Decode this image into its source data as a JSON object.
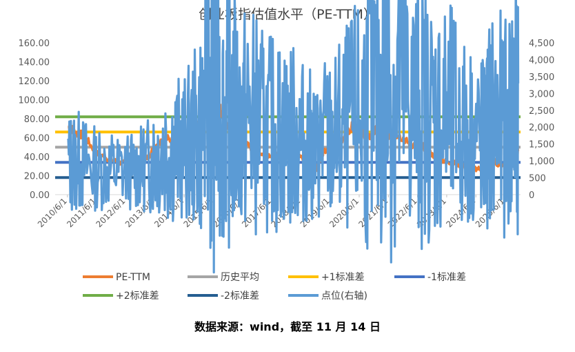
{
  "chart_data": {
    "type": "line",
    "title": "创业板指估值水平（PE-TTM）",
    "source_note": "数据来源：wind，截至 11 月 14 日",
    "x_tick_labels": [
      "2010/6/1",
      "2011/6/1",
      "2012/6/1",
      "2013/6/1",
      "2014/6/1",
      "2015/6/1",
      "2016/6/1",
      "2017/6/1",
      "2018/6/1",
      "2019/6/1",
      "2020/6/1",
      "2021/6/1",
      "2022/6/1",
      "2023/6/1",
      "2024/6/1",
      "2025/6/1"
    ],
    "y_left": {
      "ylim": [
        0,
        160
      ],
      "ticks": [
        "0.00",
        "20.00",
        "40.00",
        "60.00",
        "80.00",
        "100.00",
        "120.00",
        "140.00",
        "160.00"
      ]
    },
    "y_right": {
      "ylim": [
        0,
        4500
      ],
      "ticks": [
        "0",
        "500",
        "1,000",
        "1,500",
        "2,000",
        "2,500",
        "3,000",
        "3,500",
        "4,000",
        "4,500"
      ]
    },
    "x": [
      2010.45,
      2010.7,
      2011.0,
      2011.4,
      2011.8,
      2012.2,
      2012.6,
      2012.9,
      2013.2,
      2013.5,
      2013.8,
      2014.1,
      2014.4,
      2014.7,
      2015.0,
      2015.3,
      2015.45,
      2015.6,
      2015.8,
      2016.0,
      2016.3,
      2016.6,
      2016.9,
      2017.2,
      2017.5,
      2017.8,
      2018.1,
      2018.4,
      2018.7,
      2018.95,
      2019.2,
      2019.5,
      2019.8,
      2020.1,
      2020.4,
      2020.7,
      2021.0,
      2021.3,
      2021.6,
      2021.9,
      2022.2,
      2022.5,
      2022.8,
      2023.1,
      2023.4,
      2023.7,
      2024.0,
      2024.3,
      2024.6,
      2024.75,
      2024.9,
      2025.2,
      2025.5,
      2025.75,
      2025.87
    ],
    "series": [
      {
        "name": "PE-TTM",
        "axis": "left",
        "color": "#ED7D31",
        "values": [
          72,
          65,
          62,
          44,
          38,
          34,
          32,
          33,
          40,
          55,
          60,
          55,
          52,
          60,
          82,
          120,
          140,
          95,
          78,
          70,
          56,
          52,
          45,
          42,
          42,
          40,
          42,
          40,
          30,
          28,
          45,
          48,
          55,
          70,
          75,
          58,
          68,
          62,
          64,
          60,
          52,
          55,
          45,
          38,
          35,
          33,
          30,
          28,
          27,
          25,
          38,
          32,
          30,
          38,
          46
        ]
      },
      {
        "name": "历史平均",
        "axis": "left",
        "color": "#A5A5A5",
        "constant": 50
      },
      {
        "name": "+1标准差",
        "axis": "left",
        "color": "#FFC000",
        "constant": 66
      },
      {
        "name": "-1标准差",
        "axis": "left",
        "color": "#4472C4",
        "constant": 34
      },
      {
        "name": "+2标准差",
        "axis": "left",
        "color": "#70AD47",
        "constant": 82
      },
      {
        "name": "-2标准差",
        "axis": "left",
        "color": "#255E91",
        "constant": 18
      },
      {
        "name": "点位(右轴)",
        "axis": "right",
        "color": "#5B9BD5",
        "values": [
          950,
          1000,
          900,
          780,
          760,
          720,
          720,
          760,
          900,
          1250,
          1400,
          1380,
          1350,
          1550,
          2000,
          2900,
          3800,
          2500,
          2300,
          2600,
          2100,
          2200,
          2100,
          1800,
          1850,
          1800,
          1750,
          1600,
          1450,
          1250,
          1600,
          1550,
          1800,
          2000,
          2250,
          2700,
          2800,
          3400,
          3250,
          3200,
          2600,
          2650,
          2350,
          2300,
          2200,
          2100,
          1800,
          1750,
          1600,
          1550,
          2150,
          2100,
          2000,
          2700,
          3300
        ]
      }
    ]
  }
}
